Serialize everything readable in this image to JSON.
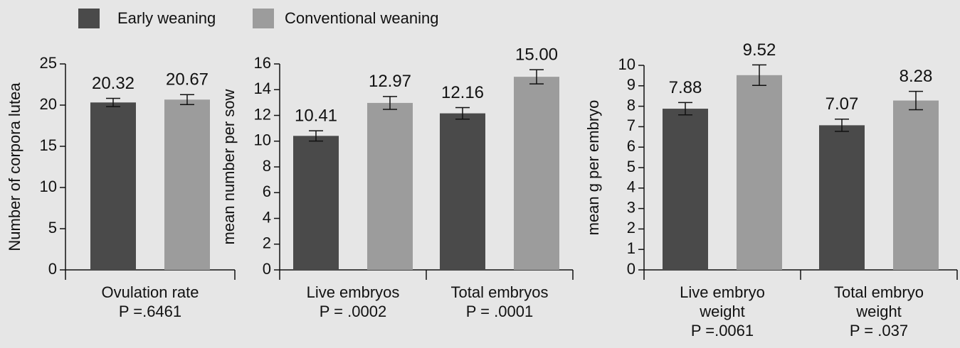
{
  "legend": [
    {
      "name": "Early weaning",
      "color": "#4a4a4a"
    },
    {
      "name": "Conventional weaning",
      "color": "#9c9c9c"
    }
  ],
  "chart_data": [
    {
      "type": "bar",
      "ylabel": "Number of corpora lutea",
      "categories": [
        [
          "Ovulation rate"
        ]
      ],
      "p_values": [
        "P =.6461"
      ],
      "series": [
        {
          "values": [
            20.32
          ],
          "errors": [
            0.5
          ]
        },
        {
          "values": [
            20.67
          ],
          "errors": [
            0.6
          ]
        }
      ],
      "ylim": [
        0,
        25
      ],
      "yticks": [
        0,
        5,
        10,
        15,
        20,
        25
      ]
    },
    {
      "type": "bar",
      "ylabel": "mean number per sow",
      "categories": [
        [
          "Live embryos"
        ],
        [
          "Total embryos"
        ]
      ],
      "p_values": [
        "P = .0002",
        "P = .0001"
      ],
      "series": [
        {
          "values": [
            10.41,
            12.16
          ],
          "errors": [
            0.4,
            0.45
          ]
        },
        {
          "values": [
            12.97,
            15
          ],
          "value_labels": [
            "12.97",
            "15.00"
          ],
          "errors": [
            0.5,
            0.55
          ]
        }
      ],
      "ylim": [
        0,
        16
      ],
      "yticks": [
        0,
        2,
        4,
        6,
        8,
        10,
        12,
        14,
        16
      ]
    },
    {
      "type": "bar",
      "ylabel": "mean g per embryo",
      "categories": [
        [
          "Live embryo",
          "weight"
        ],
        [
          "Total embryo",
          "weight"
        ]
      ],
      "p_values": [
        "P =.0061",
        "P = .037"
      ],
      "series": [
        {
          "values": [
            7.88,
            7.07
          ],
          "errors": [
            0.3,
            0.3
          ]
        },
        {
          "values": [
            9.52,
            8.28
          ],
          "errors": [
            0.5,
            0.45
          ]
        }
      ],
      "ylim": [
        0,
        10
      ],
      "yticks": [
        0,
        1,
        2,
        3,
        4,
        5,
        6,
        7,
        8,
        9,
        10
      ]
    }
  ]
}
